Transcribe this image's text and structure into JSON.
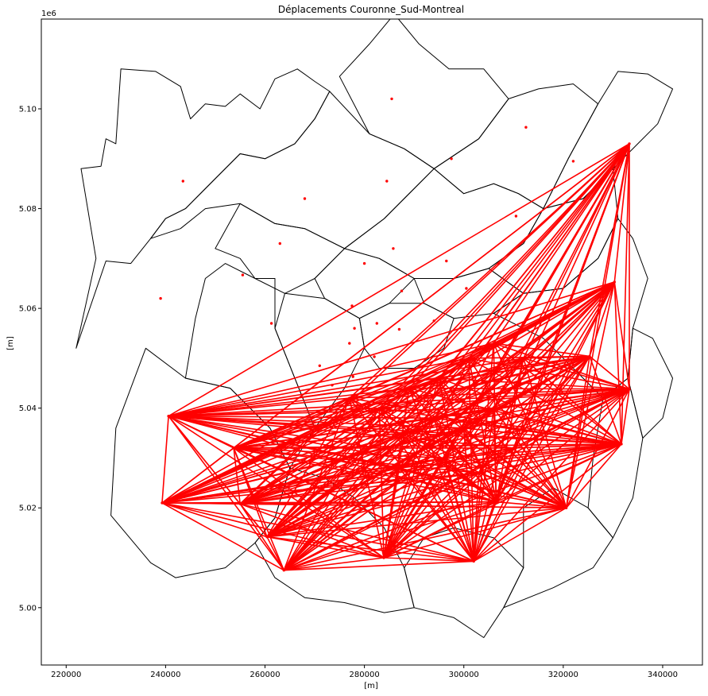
{
  "chart_data": {
    "type": "scatter",
    "title": "Déplacements Couronne_Sud-Montreal",
    "xlabel": "[m]",
    "ylabel": "[m]",
    "y_offset_label": "1e6",
    "xlim": [
      215000,
      348000
    ],
    "ylim": [
      4988500,
      5118000
    ],
    "x_ticks": [
      220000,
      240000,
      260000,
      280000,
      300000,
      320000,
      340000
    ],
    "x_tick_labels": [
      "220000",
      "240000",
      "260000",
      "280000",
      "300000",
      "320000",
      "340000"
    ],
    "y_ticks": [
      5000000,
      5020000,
      5040000,
      5060000,
      5080000,
      5100000
    ],
    "y_tick_labels": [
      "5.00",
      "5.02",
      "5.04",
      "5.06",
      "5.08",
      "5.10"
    ],
    "grid": false,
    "colors": {
      "lines": "#ff0000",
      "points": "#ff0000",
      "boundaries": "#000000"
    },
    "zone_centroids": [
      [
        243500,
        5085500
      ],
      [
        268000,
        5082000
      ],
      [
        285500,
        5102000
      ],
      [
        297500,
        5090000
      ],
      [
        312500,
        5096300
      ],
      [
        322000,
        5089500
      ],
      [
        284500,
        5085500
      ],
      [
        310500,
        5078500
      ],
      [
        263000,
        5073000
      ],
      [
        280000,
        5069000
      ],
      [
        285800,
        5072000
      ],
      [
        296500,
        5069500
      ],
      [
        239000,
        5062000
      ],
      [
        255500,
        5066700
      ],
      [
        261300,
        5057000
      ],
      [
        277500,
        5060500
      ],
      [
        287500,
        5063500
      ],
      [
        300500,
        5064000
      ],
      [
        307000,
        5069000
      ],
      [
        278000,
        5056000
      ],
      [
        282500,
        5057000
      ],
      [
        287000,
        5055800
      ],
      [
        294000,
        5057500
      ],
      [
        277000,
        5053000
      ],
      [
        271000,
        5048500
      ],
      [
        277700,
        5046300
      ],
      [
        282000,
        5050300
      ],
      [
        273500,
        5044600
      ]
    ],
    "destination_centroids": [
      [
        277000,
        5042000
      ],
      [
        283000,
        5040000
      ],
      [
        289000,
        5044000
      ],
      [
        295000,
        5046000
      ],
      [
        301000,
        5050000
      ],
      [
        306000,
        5053000
      ],
      [
        312000,
        5050000
      ],
      [
        288000,
        5035000
      ],
      [
        294000,
        5038000
      ],
      [
        300000,
        5036000
      ],
      [
        306000,
        5040000
      ],
      [
        296000,
        5030000
      ],
      [
        303000,
        5027000
      ],
      [
        310000,
        5032000
      ],
      [
        287000,
        5028000
      ]
    ],
    "origin_centroids": [
      [
        333300,
        5093000
      ],
      [
        330300,
        5065300
      ],
      [
        325300,
        5050400
      ],
      [
        333300,
        5043800
      ],
      [
        331700,
        5032800
      ],
      [
        320600,
        5020000
      ],
      [
        306500,
        5021200
      ],
      [
        302000,
        5009300
      ],
      [
        283900,
        5010000
      ],
      [
        263800,
        5007500
      ],
      [
        260400,
        5014200
      ],
      [
        255000,
        5020800
      ],
      [
        239300,
        5021000
      ],
      [
        240600,
        5038400
      ],
      [
        253700,
        5032000
      ]
    ],
    "boundaries": [
      [
        [
          229000,
          5018500
        ],
        [
          237000,
          5009000
        ],
        [
          242000,
          5006000
        ],
        [
          252000,
          5008000
        ],
        [
          258000,
          5013000
        ],
        [
          262000,
          5018000
        ],
        [
          265000,
          5028000
        ],
        [
          261000,
          5036000
        ],
        [
          253000,
          5044000
        ],
        [
          244000,
          5046000
        ],
        [
          236000,
          5052000
        ],
        [
          230000,
          5036000
        ],
        [
          229000,
          5018500
        ]
      ],
      [
        [
          222000,
          5052000
        ],
        [
          226000,
          5070000
        ],
        [
          223000,
          5088000
        ],
        [
          227000,
          5088500
        ],
        [
          228000,
          5094000
        ],
        [
          230000,
          5093000
        ],
        [
          231000,
          5108000
        ],
        [
          238000,
          5107500
        ],
        [
          243000,
          5104500
        ],
        [
          245000,
          5098000
        ],
        [
          248000,
          5101000
        ],
        [
          252000,
          5100500
        ],
        [
          255000,
          5103000
        ],
        [
          259000,
          5100000
        ],
        [
          262000,
          5106000
        ],
        [
          266500,
          5108000
        ],
        [
          270000,
          5105500
        ],
        [
          273000,
          5103500
        ],
        [
          270000,
          5098000
        ],
        [
          266000,
          5093000
        ],
        [
          260000,
          5090000
        ],
        [
          255000,
          5091000
        ],
        [
          250000,
          5086000
        ],
        [
          244000,
          5080000
        ],
        [
          240000,
          5078000
        ],
        [
          237000,
          5074000
        ],
        [
          233000,
          5069000
        ],
        [
          228000,
          5069500
        ],
        [
          222000,
          5052000
        ]
      ],
      [
        [
          237000,
          5074000
        ],
        [
          240000,
          5078000
        ],
        [
          244000,
          5080000
        ],
        [
          250000,
          5086000
        ],
        [
          255000,
          5091000
        ],
        [
          260000,
          5090000
        ],
        [
          266000,
          5093000
        ],
        [
          270000,
          5098000
        ],
        [
          273000,
          5103500
        ],
        [
          281000,
          5095000
        ],
        [
          288000,
          5092000
        ],
        [
          294000,
          5088000
        ],
        [
          284000,
          5078000
        ],
        [
          276000,
          5072000
        ],
        [
          268000,
          5076000
        ],
        [
          262000,
          5077000
        ],
        [
          255000,
          5081000
        ],
        [
          248000,
          5080000
        ],
        [
          243000,
          5076000
        ],
        [
          237000,
          5074000
        ]
      ],
      [
        [
          281000,
          5095000
        ],
        [
          288000,
          5092000
        ],
        [
          294000,
          5088000
        ],
        [
          303000,
          5094000
        ],
        [
          309000,
          5102000
        ],
        [
          304000,
          5108000
        ],
        [
          297000,
          5108000
        ],
        [
          291000,
          5113000
        ],
        [
          286000,
          5119000
        ],
        [
          281000,
          5113000
        ],
        [
          275000,
          5106500
        ],
        [
          281000,
          5095000
        ]
      ],
      [
        [
          294000,
          5088000
        ],
        [
          303000,
          5094000
        ],
        [
          309000,
          5102000
        ],
        [
          315000,
          5104000
        ],
        [
          322000,
          5105000
        ],
        [
          327000,
          5101000
        ],
        [
          321000,
          5090000
        ],
        [
          316000,
          5080000
        ],
        [
          311000,
          5083000
        ],
        [
          306000,
          5085000
        ],
        [
          300000,
          5083000
        ],
        [
          294000,
          5088000
        ]
      ],
      [
        [
          321000,
          5090000
        ],
        [
          327000,
          5101000
        ],
        [
          331000,
          5107500
        ],
        [
          337000,
          5107000
        ],
        [
          342000,
          5104000
        ],
        [
          339000,
          5097000
        ],
        [
          335000,
          5093000
        ],
        [
          330000,
          5088000
        ],
        [
          324000,
          5082000
        ],
        [
          316000,
          5080000
        ],
        [
          321000,
          5090000
        ]
      ],
      [
        [
          276000,
          5072000
        ],
        [
          284000,
          5078000
        ],
        [
          294000,
          5088000
        ],
        [
          300000,
          5083000
        ],
        [
          306000,
          5085000
        ],
        [
          311000,
          5083000
        ],
        [
          316000,
          5080000
        ],
        [
          312000,
          5073000
        ],
        [
          305000,
          5068000
        ],
        [
          298000,
          5066000
        ],
        [
          290000,
          5066000
        ],
        [
          283000,
          5070000
        ],
        [
          276000,
          5072000
        ]
      ],
      [
        [
          312000,
          5073000
        ],
        [
          316000,
          5080000
        ],
        [
          324000,
          5082000
        ],
        [
          330000,
          5088000
        ],
        [
          331000,
          5078000
        ],
        [
          327000,
          5070000
        ],
        [
          320000,
          5064000
        ],
        [
          312000,
          5063000
        ],
        [
          305000,
          5068000
        ],
        [
          312000,
          5073000
        ]
      ],
      [
        [
          255000,
          5081000
        ],
        [
          262000,
          5077000
        ],
        [
          268000,
          5076000
        ],
        [
          276000,
          5072000
        ],
        [
          270000,
          5066000
        ],
        [
          264000,
          5063000
        ],
        [
          258000,
          5066000
        ],
        [
          255000,
          5070000
        ],
        [
          250000,
          5072000
        ],
        [
          255000,
          5081000
        ]
      ],
      [
        [
          270000,
          5066000
        ],
        [
          276000,
          5072000
        ],
        [
          283000,
          5070000
        ],
        [
          290000,
          5066000
        ],
        [
          285000,
          5061000
        ],
        [
          279000,
          5058000
        ],
        [
          272000,
          5062000
        ],
        [
          270000,
          5066000
        ]
      ],
      [
        [
          290000,
          5066000
        ],
        [
          298000,
          5066000
        ],
        [
          305000,
          5068000
        ],
        [
          312000,
          5063000
        ],
        [
          306000,
          5059000
        ],
        [
          298000,
          5058000
        ],
        [
          292000,
          5061000
        ],
        [
          290000,
          5066000
        ]
      ],
      [
        [
          244000,
          5046000
        ],
        [
          253000,
          5044000
        ],
        [
          261000,
          5036000
        ],
        [
          265000,
          5028000
        ],
        [
          270000,
          5036000
        ],
        [
          266000,
          5046000
        ],
        [
          262000,
          5056000
        ],
        [
          262000,
          5066000
        ],
        [
          258000,
          5066000
        ],
        [
          252000,
          5069000
        ],
        [
          248000,
          5066000
        ],
        [
          246000,
          5058000
        ],
        [
          244000,
          5046000
        ]
      ],
      [
        [
          262000,
          5056000
        ],
        [
          266000,
          5046000
        ],
        [
          270000,
          5036000
        ],
        [
          276000,
          5044000
        ],
        [
          280000,
          5052000
        ],
        [
          279000,
          5058000
        ],
        [
          272000,
          5062000
        ],
        [
          264000,
          5063000
        ],
        [
          262000,
          5056000
        ]
      ],
      [
        [
          279000,
          5058000
        ],
        [
          285000,
          5061000
        ],
        [
          292000,
          5061000
        ],
        [
          298000,
          5058000
        ],
        [
          296000,
          5052000
        ],
        [
          290000,
          5048000
        ],
        [
          283000,
          5048000
        ],
        [
          280000,
          5052000
        ],
        [
          279000,
          5058000
        ]
      ],
      [
        [
          312000,
          5063000
        ],
        [
          320000,
          5064000
        ],
        [
          327000,
          5070000
        ],
        [
          331000,
          5078000
        ],
        [
          334000,
          5074000
        ],
        [
          337000,
          5066000
        ],
        [
          334000,
          5056000
        ],
        [
          333000,
          5046000
        ],
        [
          328000,
          5042000
        ],
        [
          322000,
          5048000
        ],
        [
          316000,
          5054000
        ],
        [
          306000,
          5059000
        ],
        [
          312000,
          5063000
        ]
      ],
      [
        [
          333000,
          5046000
        ],
        [
          334000,
          5056000
        ],
        [
          338000,
          5054000
        ],
        [
          342000,
          5046000
        ],
        [
          340000,
          5038000
        ],
        [
          336000,
          5034000
        ],
        [
          333000,
          5046000
        ]
      ],
      [
        [
          265000,
          5028000
        ],
        [
          262000,
          5018000
        ],
        [
          258000,
          5013000
        ],
        [
          262000,
          5006000
        ],
        [
          268000,
          5002000
        ],
        [
          276000,
          5001000
        ],
        [
          284000,
          4999000
        ],
        [
          290000,
          5000000
        ],
        [
          288000,
          5008000
        ],
        [
          284000,
          5016000
        ],
        [
          278000,
          5022000
        ],
        [
          272000,
          5026000
        ],
        [
          265000,
          5028000
        ]
      ],
      [
        [
          290000,
          5000000
        ],
        [
          298000,
          4998000
        ],
        [
          304000,
          4994000
        ],
        [
          308000,
          5000000
        ],
        [
          312000,
          5008000
        ],
        [
          306000,
          5014000
        ],
        [
          298000,
          5016000
        ],
        [
          292000,
          5014000
        ],
        [
          288000,
          5008000
        ],
        [
          290000,
          5000000
        ]
      ],
      [
        [
          308000,
          5000000
        ],
        [
          318000,
          5004000
        ],
        [
          326000,
          5008000
        ],
        [
          330000,
          5014000
        ],
        [
          325000,
          5020000
        ],
        [
          318000,
          5024000
        ],
        [
          312000,
          5020000
        ],
        [
          312000,
          5008000
        ],
        [
          308000,
          5000000
        ]
      ],
      [
        [
          325000,
          5020000
        ],
        [
          330000,
          5014000
        ],
        [
          334000,
          5022000
        ],
        [
          336000,
          5034000
        ],
        [
          333000,
          5046000
        ],
        [
          328000,
          5042000
        ],
        [
          326000,
          5030000
        ],
        [
          325000,
          5020000
        ]
      ]
    ]
  }
}
